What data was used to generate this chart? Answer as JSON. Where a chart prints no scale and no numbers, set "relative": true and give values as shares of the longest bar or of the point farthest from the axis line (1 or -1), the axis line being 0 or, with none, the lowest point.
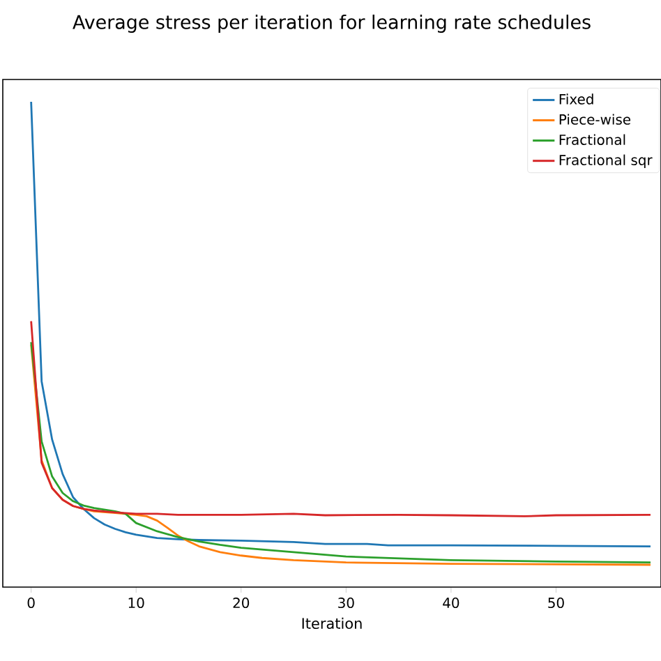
{
  "chart_data": {
    "type": "line",
    "title": "Average stress per iteration for learning rate schedules",
    "xlabel": "Iteration",
    "relative": true,
    "xlim": [
      -2.7,
      60
    ],
    "xticks": [
      0,
      10,
      20,
      30,
      40,
      50
    ],
    "legend": "top right",
    "series": [
      {
        "name": "Fixed",
        "color": "#1f77b4",
        "x": [
          0,
          1,
          2,
          3,
          4,
          5,
          6,
          7,
          8,
          9,
          10,
          12,
          14,
          16,
          20,
          25,
          28,
          32,
          34,
          40,
          50,
          59
        ],
        "values": [
          1.0,
          0.424,
          0.304,
          0.233,
          0.185,
          0.161,
          0.142,
          0.129,
          0.12,
          0.113,
          0.108,
          0.101,
          0.0986,
          0.097,
          0.0957,
          0.093,
          0.089,
          0.089,
          0.086,
          0.086,
          0.085,
          0.084
        ]
      },
      {
        "name": "Piece-wise",
        "color": "#ff7f0e",
        "x": [
          0,
          1,
          2,
          3,
          4,
          5,
          6,
          8,
          10,
          11,
          12,
          13,
          14,
          15,
          16,
          18,
          20,
          22,
          25,
          30,
          40,
          59
        ],
        "values": [
          0.5,
          0.261,
          0.204,
          0.18,
          0.167,
          0.161,
          0.156,
          0.153,
          0.149,
          0.146,
          0.137,
          0.122,
          0.106,
          0.094,
          0.084,
          0.072,
          0.065,
          0.06,
          0.0555,
          0.0507,
          0.048,
          0.046
        ]
      },
      {
        "name": "Fractional",
        "color": "#2ca02c",
        "x": [
          0,
          1,
          2,
          3,
          4,
          5,
          6,
          8,
          9,
          10,
          12,
          14,
          16,
          18,
          20,
          25,
          30,
          40,
          50,
          59
        ],
        "values": [
          0.505,
          0.3,
          0.228,
          0.194,
          0.177,
          0.168,
          0.163,
          0.156,
          0.151,
          0.132,
          0.115,
          0.103,
          0.094,
          0.087,
          0.081,
          0.072,
          0.063,
          0.0555,
          0.0526,
          0.0507
        ]
      },
      {
        "name": "Fractional sqr",
        "color": "#d62728",
        "x": [
          0,
          1,
          2,
          3,
          4,
          5,
          6,
          8,
          10,
          12,
          14,
          20,
          25,
          28,
          35,
          40,
          47,
          50,
          59
        ],
        "values": [
          0.548,
          0.256,
          0.204,
          0.18,
          0.167,
          0.161,
          0.158,
          0.154,
          0.151,
          0.151,
          0.149,
          0.149,
          0.151,
          0.148,
          0.149,
          0.148,
          0.146,
          0.148,
          0.149
        ]
      }
    ]
  }
}
